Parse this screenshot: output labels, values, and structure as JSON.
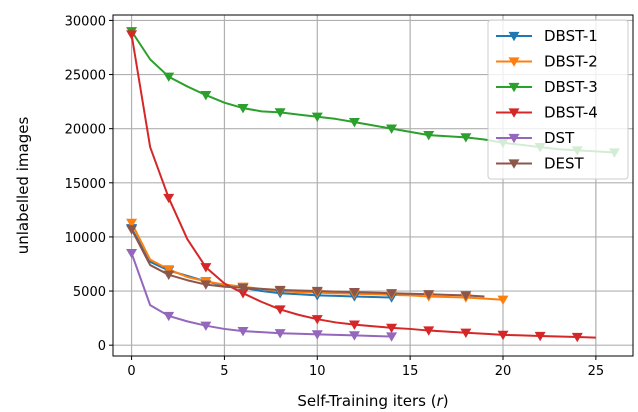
{
  "chart_data": {
    "type": "line",
    "xlabel_prefix": "Self-Training iters (",
    "xlabel_var": "r",
    "xlabel_suffix": ")",
    "ylabel": "unlabelled images",
    "xlim": [
      -1,
      27
    ],
    "ylim": [
      -1000,
      30500
    ],
    "xticks": [
      0,
      5,
      10,
      15,
      20,
      25
    ],
    "yticks": [
      0,
      5000,
      10000,
      15000,
      20000,
      25000,
      30000
    ],
    "grid": true,
    "legend_position": "top-right",
    "series": [
      {
        "name": "DBST-1",
        "color": "#1f77b4",
        "x": [
          0,
          1,
          2,
          3,
          4,
          5,
          6,
          7,
          8,
          9,
          10,
          11,
          12,
          13,
          14
        ],
        "y": [
          10800,
          7700,
          6900,
          6400,
          5900,
          5500,
          5300,
          5000,
          4800,
          4700,
          4600,
          4550,
          4500,
          4450,
          4400
        ],
        "markers": [
          0,
          2,
          4,
          6,
          8,
          10,
          12,
          14
        ]
      },
      {
        "name": "DBST-2",
        "color": "#ff7f0e",
        "x": [
          0,
          1,
          2,
          3,
          4,
          5,
          6,
          7,
          8,
          9,
          10,
          11,
          12,
          13,
          14,
          15,
          16,
          17,
          18,
          19,
          20
        ],
        "y": [
          11300,
          7900,
          7000,
          6300,
          5900,
          5600,
          5400,
          5200,
          5000,
          4900,
          4850,
          4800,
          4750,
          4700,
          4650,
          4600,
          4500,
          4450,
          4400,
          4300,
          4200
        ],
        "markers": [
          0,
          2,
          4,
          6,
          8,
          10,
          12,
          14,
          16,
          18,
          20
        ]
      },
      {
        "name": "DBST-3",
        "color": "#2ca02c",
        "x": [
          0,
          1,
          2,
          3,
          4,
          5,
          6,
          7,
          8,
          9,
          10,
          11,
          12,
          13,
          14,
          15,
          16,
          17,
          18,
          19,
          20,
          21,
          22,
          23,
          24,
          25,
          26
        ],
        "y": [
          29000,
          26400,
          24800,
          23900,
          23100,
          22400,
          21900,
          21600,
          21500,
          21300,
          21100,
          20900,
          20600,
          20300,
          20000,
          19700,
          19400,
          19300,
          19200,
          19000,
          18700,
          18500,
          18300,
          18100,
          18000,
          17900,
          17800
        ],
        "markers": [
          0,
          2,
          4,
          6,
          8,
          10,
          12,
          14,
          16,
          18,
          20,
          22,
          24,
          26
        ]
      },
      {
        "name": "DBST-4",
        "color": "#d62728",
        "x": [
          0,
          1,
          2,
          3,
          4,
          5,
          6,
          7,
          8,
          9,
          10,
          11,
          12,
          13,
          14,
          15,
          16,
          17,
          18,
          19,
          20,
          21,
          22,
          23,
          24,
          25
        ],
        "y": [
          28700,
          18300,
          13600,
          9800,
          7200,
          5700,
          4800,
          4000,
          3300,
          2800,
          2400,
          2100,
          1900,
          1750,
          1600,
          1500,
          1350,
          1250,
          1150,
          1050,
          950,
          900,
          850,
          800,
          750,
          700
        ],
        "markers": [
          0,
          2,
          4,
          6,
          8,
          10,
          12,
          14,
          16,
          18,
          20,
          22,
          24
        ]
      },
      {
        "name": "DST",
        "color": "#9467bd",
        "x": [
          0,
          1,
          2,
          3,
          4,
          5,
          6,
          7,
          8,
          9,
          10,
          11,
          12,
          13,
          14
        ],
        "y": [
          8500,
          3700,
          2700,
          2200,
          1800,
          1500,
          1300,
          1200,
          1100,
          1050,
          1000,
          950,
          900,
          850,
          800
        ],
        "markers": [
          0,
          2,
          4,
          6,
          8,
          10,
          12,
          14
        ]
      },
      {
        "name": "DEST",
        "color": "#8c564b",
        "x": [
          0,
          1,
          2,
          3,
          4,
          5,
          6,
          7,
          8,
          9,
          10,
          11,
          12,
          13,
          14,
          15,
          16,
          17,
          18,
          19
        ],
        "y": [
          10700,
          7400,
          6500,
          6000,
          5600,
          5400,
          5300,
          5200,
          5100,
          5050,
          5000,
          4950,
          4900,
          4850,
          4800,
          4750,
          4700,
          4650,
          4600,
          4500
        ],
        "markers": [
          0,
          2,
          4,
          6,
          8,
          10,
          12,
          14,
          16,
          18
        ]
      }
    ]
  }
}
